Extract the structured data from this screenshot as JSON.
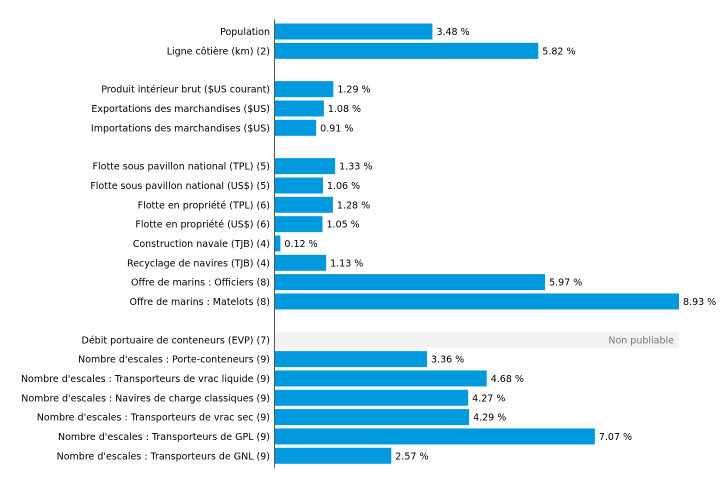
{
  "chart_data": {
    "type": "bar",
    "orientation": "horizontal",
    "unit": "%",
    "bar_color": "#0099dd",
    "unpublished_color": "#f2f2f2",
    "xlim": [
      0,
      8.93
    ],
    "grid": false,
    "categories": [
      "Population",
      "Ligne côtière (km) (2)",
      "Produit intérieur brut ($US courant)",
      "Exportations des marchandises ($US)",
      "Importations des marchandises ($US)",
      "Flotte sous pavillon national (TPL) (5)",
      "Flotte sous pavillon national (US$) (5)",
      "Flotte en propriété (TPL) (6)",
      "Flotte en propriété (US$) (6)",
      "Construction navale (TJB) (4)",
      "Recyclage de navires (TJB) (4)",
      "Offre de marins : Officiers (8)",
      "Offre de marins : Matelots (8)",
      "Débit portuaire de conteneurs (EVP) (7)",
      "Nombre d'escales : Porte-conteneurs (9)",
      "Nombre d'escales : Transporteurs de vrac liquide (9)",
      "Nombre d'escales : Navires de charge classiques (9)",
      "Nombre d'escales : Transporteurs de vrac sec (9)",
      "Nombre d'escales : Transporteurs de GPL (9)",
      "Nombre d'escales : Transporteurs de GNL (9)"
    ],
    "values": [
      3.48,
      5.82,
      1.29,
      1.08,
      0.91,
      1.33,
      1.06,
      1.28,
      1.05,
      0.12,
      1.13,
      5.97,
      8.93,
      null,
      3.36,
      4.68,
      4.27,
      4.29,
      7.07,
      2.57
    ],
    "value_labels": [
      "3.48 %",
      "5.82 %",
      "1.29 %",
      "1.08 %",
      "0.91 %",
      "1.33 %",
      "1.06 %",
      "1.28 %",
      "1.05 %",
      "0.12 %",
      "1.13 %",
      "5.97 %",
      "8.93 %",
      "Non publiable",
      "3.36 %",
      "4.68 %",
      "4.27 %",
      "4.29 %",
      "7.07 %",
      "2.57 %"
    ],
    "groups": [
      2,
      3,
      8,
      7
    ]
  }
}
